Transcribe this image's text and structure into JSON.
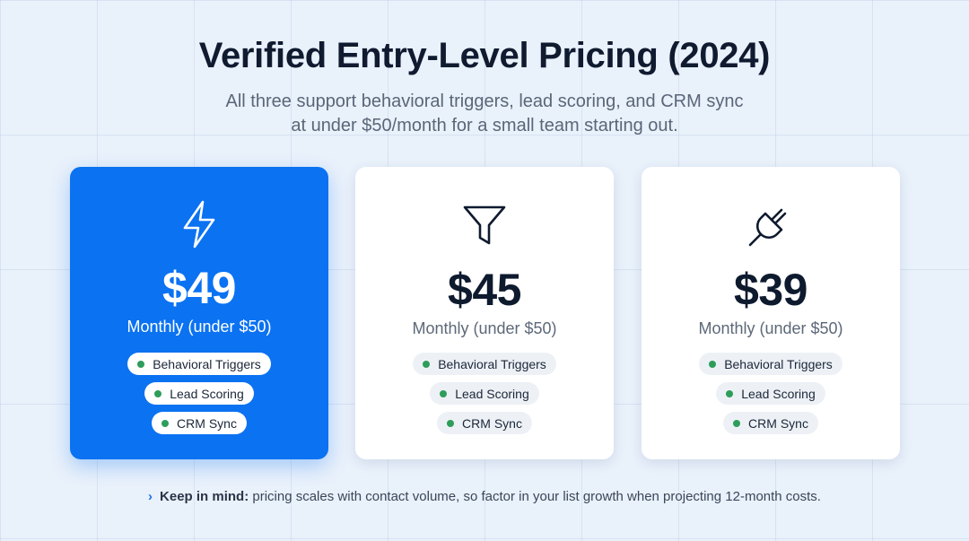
{
  "header": {
    "title": "Verified Entry-Level Pricing (2024)",
    "subtitle_line1": "All three support behavioral triggers, lead scoring, and CRM sync",
    "subtitle_line2": "at under $50/month for a small team starting out."
  },
  "cards": [
    {
      "icon": "lightning-bolt-icon",
      "price": "$49",
      "period": "Monthly (under $50)",
      "features": [
        "Behavioral Triggers",
        "Lead Scoring",
        "CRM Sync"
      ],
      "featured": true
    },
    {
      "icon": "funnel-icon",
      "price": "$45",
      "period": "Monthly (under $50)",
      "features": [
        "Behavioral Triggers",
        "Lead Scoring",
        "CRM Sync"
      ],
      "featured": false
    },
    {
      "icon": "plug-icon",
      "price": "$39",
      "period": "Monthly (under $50)",
      "features": [
        "Behavioral Triggers",
        "Lead Scoring",
        "CRM Sync"
      ],
      "featured": false
    }
  ],
  "note": {
    "label": "Keep in mind:",
    "text": "pricing scales with contact volume, so factor in your list growth when projecting 12-month costs."
  },
  "colors": {
    "accent": "#0b72f2",
    "feature_dot": "#2e9d5a",
    "background": "#e9f1fb"
  }
}
